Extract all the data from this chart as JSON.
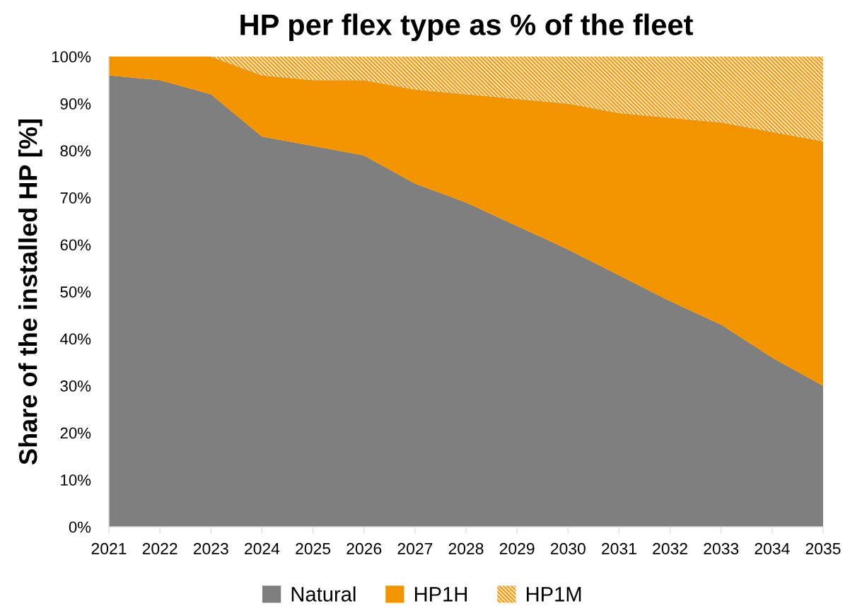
{
  "chart_data": {
    "type": "area",
    "stacked": true,
    "title": "HP per flex type as % of the fleet",
    "ylabel": "Share of the installed HP [%]",
    "categories": [
      "2021",
      "2022",
      "2023",
      "2024",
      "2025",
      "2026",
      "2027",
      "2028",
      "2029",
      "2030",
      "2031",
      "2032",
      "2033",
      "2034",
      "2035"
    ],
    "series": [
      {
        "name": "Natural",
        "color": "#7f7f7f",
        "values": [
          96,
          95,
          92,
          83,
          81,
          79,
          73,
          69,
          64,
          59,
          53.5,
          48,
          43,
          36,
          30
        ]
      },
      {
        "name": "HP1H",
        "color": "#f29400",
        "values": [
          4,
          5,
          8,
          13,
          14,
          16,
          20,
          23,
          27,
          31,
          34.5,
          39,
          43,
          48,
          52
        ]
      },
      {
        "name": "HP1M",
        "color": "#f29400",
        "values": [
          0,
          0,
          0,
          4,
          5,
          5,
          7,
          8,
          9,
          10,
          12,
          13,
          14,
          16,
          18
        ]
      }
    ],
    "ylim": [
      0,
      100
    ],
    "yticks": [
      {
        "value": 0,
        "label": "0%"
      },
      {
        "value": 10,
        "label": "10%"
      },
      {
        "value": 20,
        "label": "20%"
      },
      {
        "value": 30,
        "label": "30%"
      },
      {
        "value": 40,
        "label": "40%"
      },
      {
        "value": 50,
        "label": "50%"
      },
      {
        "value": 60,
        "label": "60%"
      },
      {
        "value": 70,
        "label": "70%"
      },
      {
        "value": 80,
        "label": "80%"
      },
      {
        "value": 90,
        "label": "90%"
      },
      {
        "value": 100,
        "label": "100%"
      }
    ],
    "legend": "bottom",
    "grid": false
  }
}
